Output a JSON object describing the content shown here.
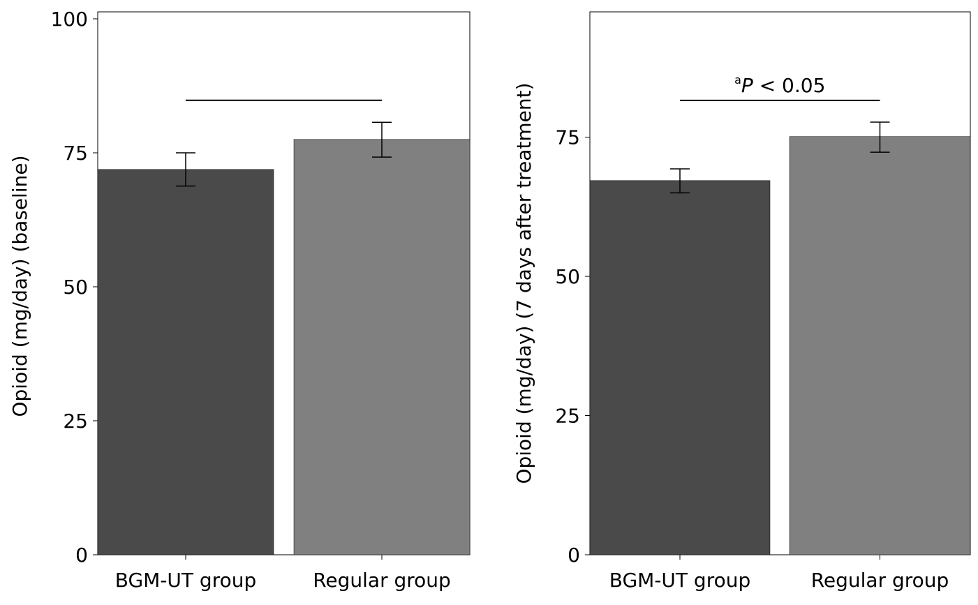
{
  "chart_data": [
    {
      "type": "bar",
      "title": "",
      "xlabel": "",
      "ylabel": "Opioid (mg/day) (baseline)",
      "categories": [
        "BGM-UT group",
        "Regular group"
      ],
      "values": [
        71.9,
        77.5
      ],
      "error_low": [
        68.8,
        74.2
      ],
      "error_high": [
        75.0,
        80.7
      ],
      "colors": [
        "#4a4a4a",
        "#808080"
      ],
      "ylim": [
        0,
        101.3
      ],
      "yticks": [
        0,
        25,
        50,
        75,
        100
      ],
      "significance": {
        "y": 84.8,
        "label": ""
      },
      "grid": false
    },
    {
      "type": "bar",
      "title": "",
      "xlabel": "",
      "ylabel": "Opioid (mg/day) (7 days after treatment)",
      "categories": [
        "BGM-UT group",
        "Regular group"
      ],
      "values": [
        67.2,
        75.1
      ],
      "error_low": [
        65.0,
        72.3
      ],
      "error_high": [
        69.3,
        77.7
      ],
      "colors": [
        "#4a4a4a",
        "#808080"
      ],
      "ylim": [
        0,
        97.5
      ],
      "yticks": [
        0,
        25,
        50,
        75
      ],
      "significance": {
        "y": 81.6,
        "label_sup": "a",
        "label_p": "P",
        "label_rest": " < 0.05"
      },
      "grid": false
    }
  ]
}
